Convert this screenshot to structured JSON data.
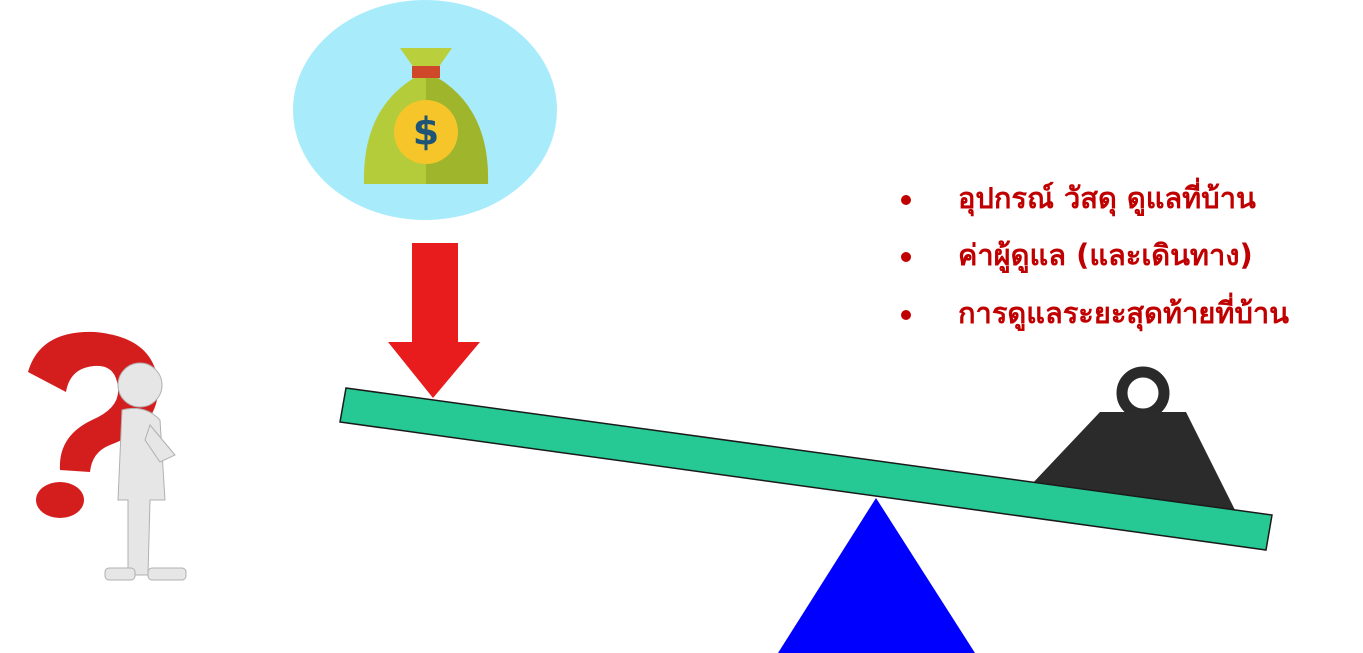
{
  "money_bag": {
    "symbol": "$"
  },
  "bullets": [
    "อุปกรณ์ วัสดุ ดูแลที่บ้าน",
    "ค่าผู้ดูแล (และเดินทาง)",
    "การดูแลระยะสุดท้ายที่บ้าน"
  ]
}
